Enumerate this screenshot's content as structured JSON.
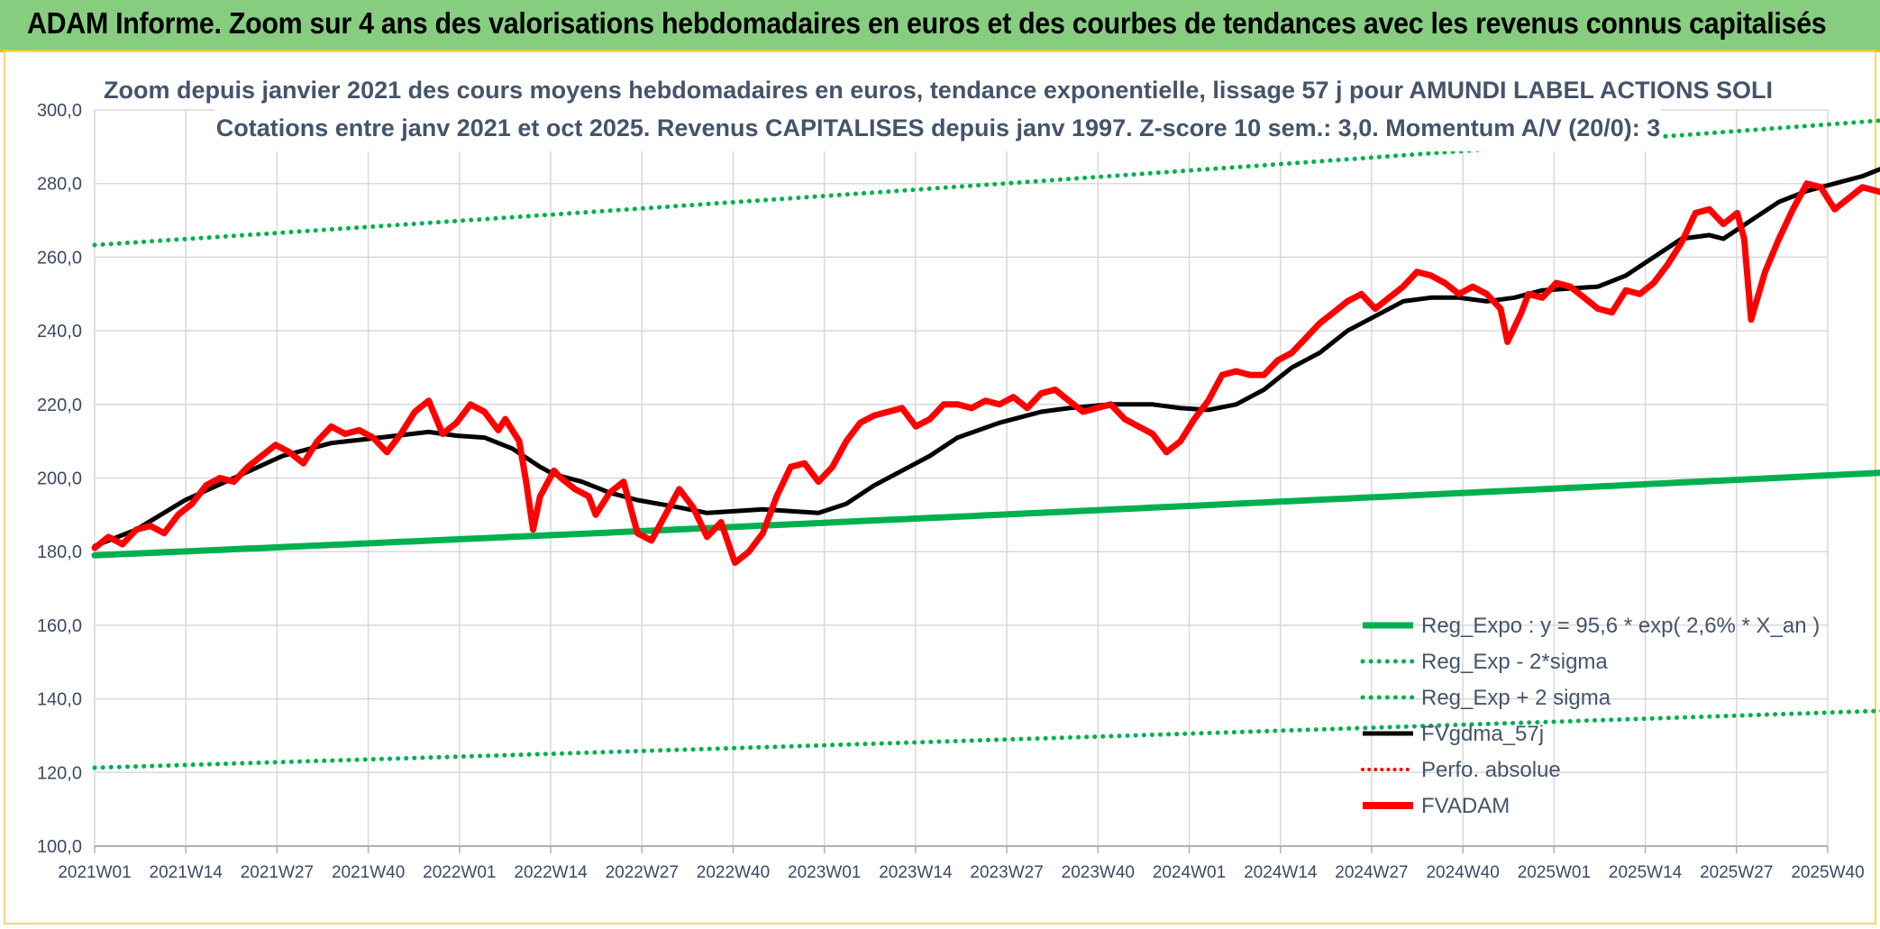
{
  "banner": {
    "title": "ADAM Informe. Zoom sur 4 ans des valorisations hebdomadaires en euros et des courbes de tendances avec les revenus connus capitalisés",
    "background": "#86cd80",
    "accent": "#e6c200"
  },
  "colors": {
    "trend": "#00b050",
    "smooth": "#000000",
    "price": "#ff0000",
    "grid": "#d9d9d9",
    "axis_text": "#3c4a66"
  },
  "chart_data": {
    "type": "line",
    "title": "Zoom depuis janvier 2021 des cours moyens hebdomadaires en euros, tendance exponentielle, lissage 57 j pour AMUNDI LABEL ACTIONS SOLI",
    "subtitle": "Cotations entre janv 2021 et oct 2025. Revenus CAPITALISES depuis janv 1997. Z-score 10 sem.: 3,0. Momentum A/V (20/0): 3",
    "ylim": [
      100,
      300
    ],
    "yticks": [
      "100,0",
      "120,0",
      "140,0",
      "160,0",
      "180,0",
      "200,0",
      "220,0",
      "240,0",
      "260,0",
      "280,0",
      "300,0"
    ],
    "xticks": [
      "2021W01",
      "2021W14",
      "2021W27",
      "2021W40",
      "2022W01",
      "2022W14",
      "2022W27",
      "2022W40",
      "2023W01",
      "2023W14",
      "2023W27",
      "2023W40",
      "2024W01",
      "2024W14",
      "2024W27",
      "2024W40",
      "2025W01",
      "2025W14",
      "2025W27",
      "2025W40"
    ],
    "week_count": 249,
    "grid": true,
    "legend_position": "bottom-right",
    "series": [
      {
        "name": "Reg_Expo : y = 95,6 * exp( 2,6% *  X_an )",
        "style": "solid-thick",
        "color": "#00b050",
        "start": 179,
        "end": 202.2
      },
      {
        "name": "Reg_Exp - 2*sigma",
        "style": "dotted",
        "color": "#00b050",
        "start": 121.3,
        "end": 137.3
      },
      {
        "name": "Reg_Exp + 2 sigma",
        "style": "dotted",
        "color": "#00b050",
        "start": 263.3,
        "end": 298.3
      },
      {
        "name": "FVgdma_57j",
        "style": "solid",
        "color": "#000000",
        "points": [
          [
            0,
            181.5
          ],
          [
            6,
            186
          ],
          [
            13,
            194
          ],
          [
            20,
            200
          ],
          [
            27,
            206
          ],
          [
            34,
            209.5
          ],
          [
            41,
            211
          ],
          [
            48,
            212.5
          ],
          [
            52,
            211.5
          ],
          [
            56,
            211
          ],
          [
            60,
            208
          ],
          [
            64,
            203
          ],
          [
            66,
            201
          ],
          [
            70,
            199
          ],
          [
            74,
            196
          ],
          [
            78,
            194
          ],
          [
            84,
            192
          ],
          [
            88,
            190.5
          ],
          [
            92,
            191
          ],
          [
            96,
            191.5
          ],
          [
            100,
            191
          ],
          [
            104,
            190.5
          ],
          [
            108,
            193
          ],
          [
            112,
            198
          ],
          [
            116,
            202
          ],
          [
            120,
            206
          ],
          [
            124,
            211
          ],
          [
            130,
            215
          ],
          [
            136,
            218
          ],
          [
            140,
            219
          ],
          [
            146,
            220
          ],
          [
            152,
            220
          ],
          [
            156,
            219
          ],
          [
            160,
            218.5
          ],
          [
            164,
            220
          ],
          [
            168,
            224
          ],
          [
            172,
            230
          ],
          [
            176,
            234
          ],
          [
            180,
            240
          ],
          [
            184,
            244
          ],
          [
            188,
            248
          ],
          [
            192,
            249
          ],
          [
            196,
            249
          ],
          [
            200,
            248
          ],
          [
            204,
            249
          ],
          [
            208,
            251
          ],
          [
            212,
            251.5
          ],
          [
            216,
            252
          ],
          [
            220,
            255
          ],
          [
            224,
            260
          ],
          [
            228,
            265
          ],
          [
            232,
            266
          ],
          [
            234,
            265
          ],
          [
            238,
            270
          ],
          [
            242,
            275
          ],
          [
            246,
            278
          ],
          [
            250,
            280
          ],
          [
            254,
            282
          ],
          [
            258,
            285
          ]
        ]
      },
      {
        "name": "Perfo. absolue",
        "style": "dotted",
        "color": "#ff0000"
      },
      {
        "name": "FVADAM",
        "style": "solid-thick",
        "color": "#ff0000",
        "points": [
          [
            0,
            181
          ],
          [
            2,
            184
          ],
          [
            4,
            182
          ],
          [
            6,
            186
          ],
          [
            8,
            187
          ],
          [
            10,
            185
          ],
          [
            12,
            190
          ],
          [
            14,
            193
          ],
          [
            16,
            198
          ],
          [
            18,
            200
          ],
          [
            20,
            199
          ],
          [
            22,
            203
          ],
          [
            24,
            206
          ],
          [
            26,
            209
          ],
          [
            28,
            207
          ],
          [
            30,
            204
          ],
          [
            32,
            210
          ],
          [
            34,
            214
          ],
          [
            36,
            212
          ],
          [
            38,
            213
          ],
          [
            40,
            211
          ],
          [
            42,
            207
          ],
          [
            44,
            212
          ],
          [
            46,
            218
          ],
          [
            48,
            221
          ],
          [
            50,
            212
          ],
          [
            52,
            215
          ],
          [
            54,
            220
          ],
          [
            56,
            218
          ],
          [
            58,
            213
          ],
          [
            59,
            216
          ],
          [
            61,
            210
          ],
          [
            62,
            199
          ],
          [
            63,
            186
          ],
          [
            64,
            195
          ],
          [
            66,
            202
          ],
          [
            67,
            200
          ],
          [
            69,
            197
          ],
          [
            71,
            195
          ],
          [
            72,
            190
          ],
          [
            74,
            196
          ],
          [
            76,
            199
          ],
          [
            78,
            185
          ],
          [
            80,
            183
          ],
          [
            82,
            190
          ],
          [
            84,
            197
          ],
          [
            86,
            192
          ],
          [
            88,
            184
          ],
          [
            90,
            188
          ],
          [
            92,
            177
          ],
          [
            94,
            180
          ],
          [
            96,
            185
          ],
          [
            98,
            195
          ],
          [
            100,
            203
          ],
          [
            102,
            204
          ],
          [
            104,
            199
          ],
          [
            106,
            203
          ],
          [
            108,
            210
          ],
          [
            110,
            215
          ],
          [
            112,
            217
          ],
          [
            114,
            218
          ],
          [
            116,
            219
          ],
          [
            118,
            214
          ],
          [
            120,
            216
          ],
          [
            122,
            220
          ],
          [
            124,
            220
          ],
          [
            126,
            219
          ],
          [
            128,
            221
          ],
          [
            130,
            220
          ],
          [
            132,
            222
          ],
          [
            134,
            219
          ],
          [
            136,
            223
          ],
          [
            138,
            224
          ],
          [
            140,
            221
          ],
          [
            142,
            218
          ],
          [
            144,
            219
          ],
          [
            146,
            220
          ],
          [
            148,
            216
          ],
          [
            150,
            214
          ],
          [
            152,
            212
          ],
          [
            154,
            207
          ],
          [
            156,
            210
          ],
          [
            158,
            216
          ],
          [
            160,
            221
          ],
          [
            162,
            228
          ],
          [
            164,
            229
          ],
          [
            166,
            228
          ],
          [
            168,
            228
          ],
          [
            170,
            232
          ],
          [
            172,
            234
          ],
          [
            174,
            238
          ],
          [
            176,
            242
          ],
          [
            178,
            245
          ],
          [
            180,
            248
          ],
          [
            182,
            250
          ],
          [
            184,
            246
          ],
          [
            186,
            249
          ],
          [
            188,
            252
          ],
          [
            190,
            256
          ],
          [
            192,
            255
          ],
          [
            194,
            253
          ],
          [
            196,
            250
          ],
          [
            198,
            252
          ],
          [
            200,
            250
          ],
          [
            202,
            246
          ],
          [
            203,
            237
          ],
          [
            205,
            245
          ],
          [
            206,
            250
          ],
          [
            208,
            249
          ],
          [
            210,
            253
          ],
          [
            212,
            252
          ],
          [
            214,
            249
          ],
          [
            216,
            246
          ],
          [
            218,
            245
          ],
          [
            220,
            251
          ],
          [
            222,
            250
          ],
          [
            224,
            253
          ],
          [
            226,
            258
          ],
          [
            228,
            264
          ],
          [
            230,
            272
          ],
          [
            232,
            273
          ],
          [
            234,
            269
          ],
          [
            236,
            272
          ],
          [
            237,
            265
          ],
          [
            238,
            243
          ],
          [
            240,
            256
          ],
          [
            242,
            265
          ],
          [
            244,
            273
          ],
          [
            246,
            280
          ],
          [
            248,
            279
          ],
          [
            250,
            273
          ],
          [
            252,
            276
          ],
          [
            254,
            279
          ],
          [
            256,
            278
          ],
          [
            258,
            277
          ],
          [
            260,
            283
          ],
          [
            261,
            276
          ],
          [
            262,
            281
          ],
          [
            264,
            284
          ],
          [
            265,
            290
          ]
        ]
      }
    ]
  }
}
